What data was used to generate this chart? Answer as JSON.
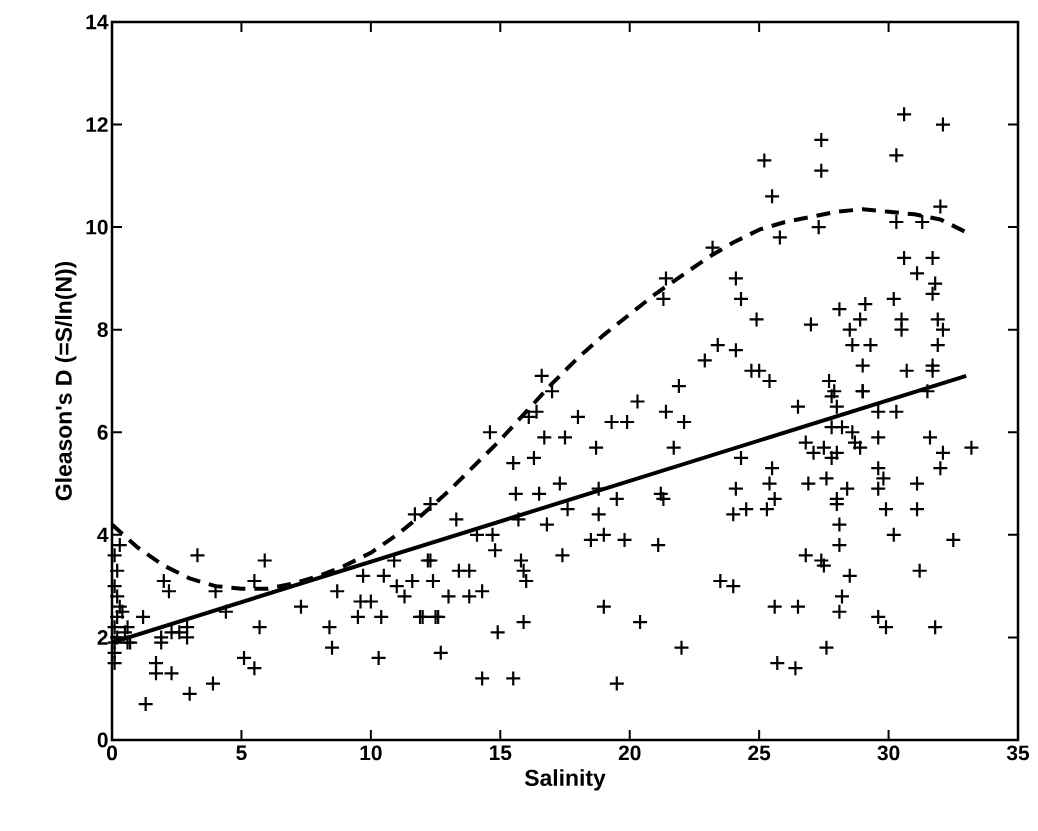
{
  "chart_data": {
    "type": "scatter",
    "xlabel": "Salinity",
    "ylabel": "Gleason's D (=S/ln(N))",
    "xlim": [
      0,
      35
    ],
    "ylim": [
      0,
      14
    ],
    "xticks": [
      0,
      5,
      10,
      15,
      20,
      25,
      30,
      35
    ],
    "yticks": [
      0,
      2,
      4,
      6,
      8,
      10,
      12,
      14
    ],
    "series": [
      {
        "color": "#000000",
        "marker": "cross",
        "x": [
          0.1,
          0.1,
          0.1,
          0.2,
          0.1,
          0.2,
          0.3,
          0.2,
          0.1,
          0.2,
          0.1,
          0.3,
          0.5,
          0.6,
          0.4,
          0.6,
          3.3,
          5.9,
          2.0,
          2.2,
          4.0,
          5.5,
          4.4,
          5.7,
          1.2,
          1.9,
          2.3,
          2.6,
          2.9,
          2.9,
          1.9,
          0.7,
          1.7,
          1.7,
          2.3,
          3.0,
          3.9,
          1.3,
          5.1,
          5.5,
          7.3,
          8.7,
          8.4,
          8.5,
          10.3,
          9.7,
          9.6,
          9.5,
          10.0,
          10.5,
          10.4,
          10.9,
          11.0,
          11.3,
          11.9,
          12.5,
          12.2,
          12.7,
          11.6,
          16.6,
          17.0,
          14.6,
          16.1,
          16.4,
          16.7,
          17.5,
          16.3,
          15.5,
          18.0,
          19.3,
          19.9,
          20.3,
          21.9,
          21.4,
          22.1,
          18.7,
          21.7,
          15.6,
          16.5,
          17.3,
          15.7,
          16.8,
          17.6,
          18.8,
          19.5,
          18.8,
          18.5,
          19.0,
          19.8,
          21.1,
          21.3,
          13.3,
          14.1,
          14.8,
          14.7,
          15.8,
          15.9,
          16.0,
          17.4,
          11.7,
          12.3,
          12.3,
          12.4,
          13.0,
          13.4,
          13.8,
          13.8,
          14.3,
          12.0,
          12.6,
          14.9,
          15.9,
          14.3,
          15.5,
          19.0,
          20.4,
          22.0,
          19.5,
          30.6,
          32.1,
          30.3,
          27.4,
          27.4,
          25.2,
          25.5,
          32.0,
          30.3,
          31.3,
          27.3,
          25.8,
          23.2,
          21.4,
          21.3,
          24.1,
          24.3,
          24.9,
          30.6,
          31.7,
          31.1,
          31.8,
          31.7,
          30.2,
          29.1,
          28.1,
          28.9,
          28.5,
          29.3,
          28.6,
          29.0,
          30.5,
          30.5,
          31.9,
          32.1,
          31.9,
          27.0,
          23.4,
          24.1,
          22.9,
          24.7,
          25.0,
          25.4,
          30.7,
          31.7,
          31.7,
          27.7,
          29.0,
          27.9,
          26.5,
          27.8,
          29.0,
          28.0,
          29.6,
          30.3,
          31.5,
          28.2,
          28.6,
          28.7,
          27.8,
          29.6,
          31.6,
          32.1,
          33.2,
          32.0,
          26.8,
          27.1,
          27.5,
          27.8,
          28.0,
          28.9,
          24.3,
          25.5,
          26.9,
          27.6,
          28.4,
          28.0,
          28.0,
          29.6,
          29.8,
          29.6,
          31.1,
          24.1,
          25.4,
          25.6,
          25.3,
          24.5,
          24.0,
          21.2,
          29.9,
          31.1,
          28.1,
          28.1,
          30.2,
          32.5,
          26.8,
          27.4,
          27.5,
          31.2,
          28.5,
          23.5,
          24.0,
          28.2,
          28.1,
          25.6,
          26.5,
          29.6,
          29.9,
          31.8,
          27.6,
          25.7,
          26.4
        ],
        "values": [
          1.5,
          1.7,
          1.9,
          2.0,
          2.2,
          2.4,
          2.6,
          2.8,
          3.0,
          3.3,
          3.6,
          3.8,
          2.1,
          1.9,
          2.5,
          2.2,
          3.6,
          3.5,
          3.1,
          2.9,
          2.9,
          3.1,
          2.5,
          2.2,
          2.4,
          2.0,
          2.1,
          2.1,
          2.2,
          2.0,
          1.9,
          1.9,
          1.5,
          1.3,
          1.3,
          0.9,
          1.1,
          0.7,
          1.6,
          1.4,
          2.6,
          2.9,
          2.2,
          1.8,
          1.6,
          3.2,
          2.7,
          2.4,
          2.7,
          3.2,
          2.4,
          3.5,
          3.0,
          2.8,
          2.4,
          2.4,
          3.5,
          1.7,
          3.1,
          7.1,
          6.8,
          6.0,
          6.3,
          6.4,
          5.9,
          5.9,
          5.5,
          5.4,
          6.3,
          6.2,
          6.2,
          6.6,
          6.9,
          6.4,
          6.2,
          5.7,
          5.7,
          4.8,
          4.8,
          5.0,
          4.3,
          4.2,
          4.5,
          4.9,
          4.7,
          4.4,
          3.9,
          4.0,
          3.9,
          3.8,
          4.7,
          4.3,
          4.0,
          3.7,
          4.0,
          3.5,
          3.3,
          3.1,
          3.6,
          4.4,
          4.6,
          3.5,
          3.1,
          2.8,
          3.3,
          3.3,
          2.8,
          2.9,
          2.4,
          2.4,
          2.1,
          2.3,
          1.2,
          1.2,
          2.6,
          2.3,
          1.8,
          1.1,
          12.2,
          12.0,
          11.4,
          11.7,
          11.1,
          11.3,
          10.6,
          10.4,
          10.1,
          10.1,
          10.0,
          9.8,
          9.6,
          9.0,
          8.6,
          9.0,
          8.6,
          8.2,
          9.4,
          9.4,
          9.1,
          8.9,
          8.7,
          8.6,
          8.5,
          8.4,
          8.2,
          8.0,
          7.7,
          7.7,
          7.3,
          8.2,
          8.0,
          8.2,
          8.0,
          7.7,
          8.1,
          7.7,
          7.6,
          7.4,
          7.2,
          7.2,
          7.0,
          7.2,
          7.3,
          7.2,
          7.0,
          6.8,
          6.8,
          6.5,
          6.7,
          6.8,
          6.5,
          6.4,
          6.4,
          6.8,
          6.1,
          6.0,
          5.8,
          6.1,
          5.9,
          5.9,
          5.6,
          5.7,
          5.3,
          5.8,
          5.6,
          5.7,
          5.5,
          5.6,
          5.7,
          5.5,
          5.3,
          5.0,
          5.1,
          4.9,
          4.7,
          4.6,
          5.3,
          5.1,
          4.9,
          5.0,
          4.9,
          5.0,
          4.7,
          4.5,
          4.5,
          4.4,
          4.8,
          4.5,
          4.5,
          4.2,
          3.8,
          4.0,
          3.9,
          3.6,
          3.5,
          3.4,
          3.3,
          3.2,
          3.1,
          3.0,
          2.8,
          2.5,
          2.6,
          2.6,
          2.4,
          2.2,
          2.2,
          1.8,
          1.5,
          1.4
        ]
      },
      {
        "type": "line",
        "color": "#000000",
        "line_style": "solid",
        "x": [
          0,
          33
        ],
        "values": [
          1.9,
          7.1
        ]
      },
      {
        "type": "line",
        "color": "#000000",
        "line_style": "dashed",
        "x": [
          0,
          1,
          2,
          3,
          4,
          5,
          6,
          7,
          8,
          9,
          10,
          11,
          12,
          13,
          14,
          15,
          16,
          17,
          18,
          19,
          20,
          21,
          22,
          23,
          24,
          25,
          26,
          27,
          28,
          29,
          30,
          31,
          32,
          33
        ],
        "values": [
          4.2,
          3.75,
          3.4,
          3.15,
          3.0,
          2.95,
          2.95,
          3.05,
          3.2,
          3.4,
          3.65,
          4.0,
          4.4,
          4.85,
          5.35,
          5.85,
          6.4,
          6.95,
          7.45,
          7.9,
          8.3,
          8.7,
          9.05,
          9.4,
          9.7,
          9.95,
          10.1,
          10.2,
          10.3,
          10.35,
          10.3,
          10.25,
          10.15,
          9.9
        ]
      }
    ]
  }
}
